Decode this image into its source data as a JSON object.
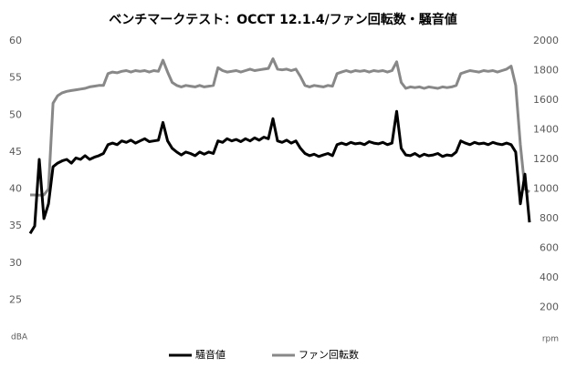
{
  "chart_data": {
    "type": "line",
    "title": "ベンチマークテスト：OCCT 12.1.4/ファン回転数・騒音値",
    "y_label": "dBA",
    "y2_label": "rpm",
    "ylim": [
      20,
      60
    ],
    "yticks": [
      25,
      30,
      35,
      40,
      45,
      50,
      55,
      60
    ],
    "y2lim": [
      0,
      2000
    ],
    "y2ticks": [
      200,
      400,
      600,
      800,
      1000,
      1200,
      1400,
      1600,
      1800,
      2000
    ],
    "legend": "bottom",
    "series": [
      {
        "name": "騒音値",
        "color": "#000000",
        "axis": "y",
        "values": [
          34,
          35,
          44,
          36,
          38,
          43,
          43.5,
          43.8,
          44,
          43.5,
          44.2,
          44,
          44.5,
          44,
          44.3,
          44.5,
          44.8,
          46,
          46.2,
          46,
          46.5,
          46.3,
          46.6,
          46.2,
          46.5,
          46.8,
          46.4,
          46.5,
          46.6,
          49,
          46.5,
          45.5,
          45,
          44.6,
          45,
          44.8,
          44.5,
          45,
          44.7,
          45,
          44.8,
          46.5,
          46.3,
          46.8,
          46.5,
          46.7,
          46.4,
          46.8,
          46.5,
          46.9,
          46.6,
          47,
          46.8,
          49.5,
          46.5,
          46.3,
          46.6,
          46.2,
          46.5,
          45.5,
          44.8,
          44.5,
          44.7,
          44.4,
          44.6,
          44.8,
          44.5,
          46,
          46.2,
          46,
          46.3,
          46.1,
          46.2,
          46,
          46.4,
          46.2,
          46.1,
          46.3,
          46,
          46.2,
          50.5,
          45.5,
          44.6,
          44.5,
          44.8,
          44.4,
          44.7,
          44.5,
          44.6,
          44.8,
          44.4,
          44.6,
          44.5,
          45,
          46.5,
          46.2,
          46,
          46.3,
          46.1,
          46.2,
          46,
          46.3,
          46.1,
          46,
          46.2,
          46,
          45,
          38,
          42,
          35.5
        ]
      },
      {
        "name": "ファン回転数",
        "color": "#888888",
        "axis": "y2",
        "values": [
          960,
          960,
          958,
          960,
          1000,
          1580,
          1630,
          1650,
          1660,
          1665,
          1670,
          1675,
          1680,
          1690,
          1695,
          1700,
          1700,
          1780,
          1790,
          1785,
          1795,
          1800,
          1790,
          1800,
          1795,
          1800,
          1790,
          1800,
          1795,
          1870,
          1790,
          1720,
          1700,
          1690,
          1700,
          1695,
          1690,
          1700,
          1690,
          1695,
          1700,
          1820,
          1800,
          1790,
          1795,
          1800,
          1790,
          1800,
          1810,
          1800,
          1805,
          1810,
          1815,
          1880,
          1810,
          1805,
          1810,
          1800,
          1810,
          1760,
          1700,
          1690,
          1700,
          1695,
          1690,
          1700,
          1695,
          1780,
          1790,
          1800,
          1790,
          1800,
          1795,
          1800,
          1790,
          1800,
          1795,
          1800,
          1790,
          1800,
          1860,
          1720,
          1680,
          1690,
          1685,
          1690,
          1680,
          1690,
          1685,
          1680,
          1690,
          1685,
          1690,
          1700,
          1780,
          1790,
          1800,
          1795,
          1790,
          1800,
          1795,
          1800,
          1790,
          1800,
          1810,
          1830,
          1700,
          1300,
          1000,
          980
        ]
      }
    ]
  }
}
